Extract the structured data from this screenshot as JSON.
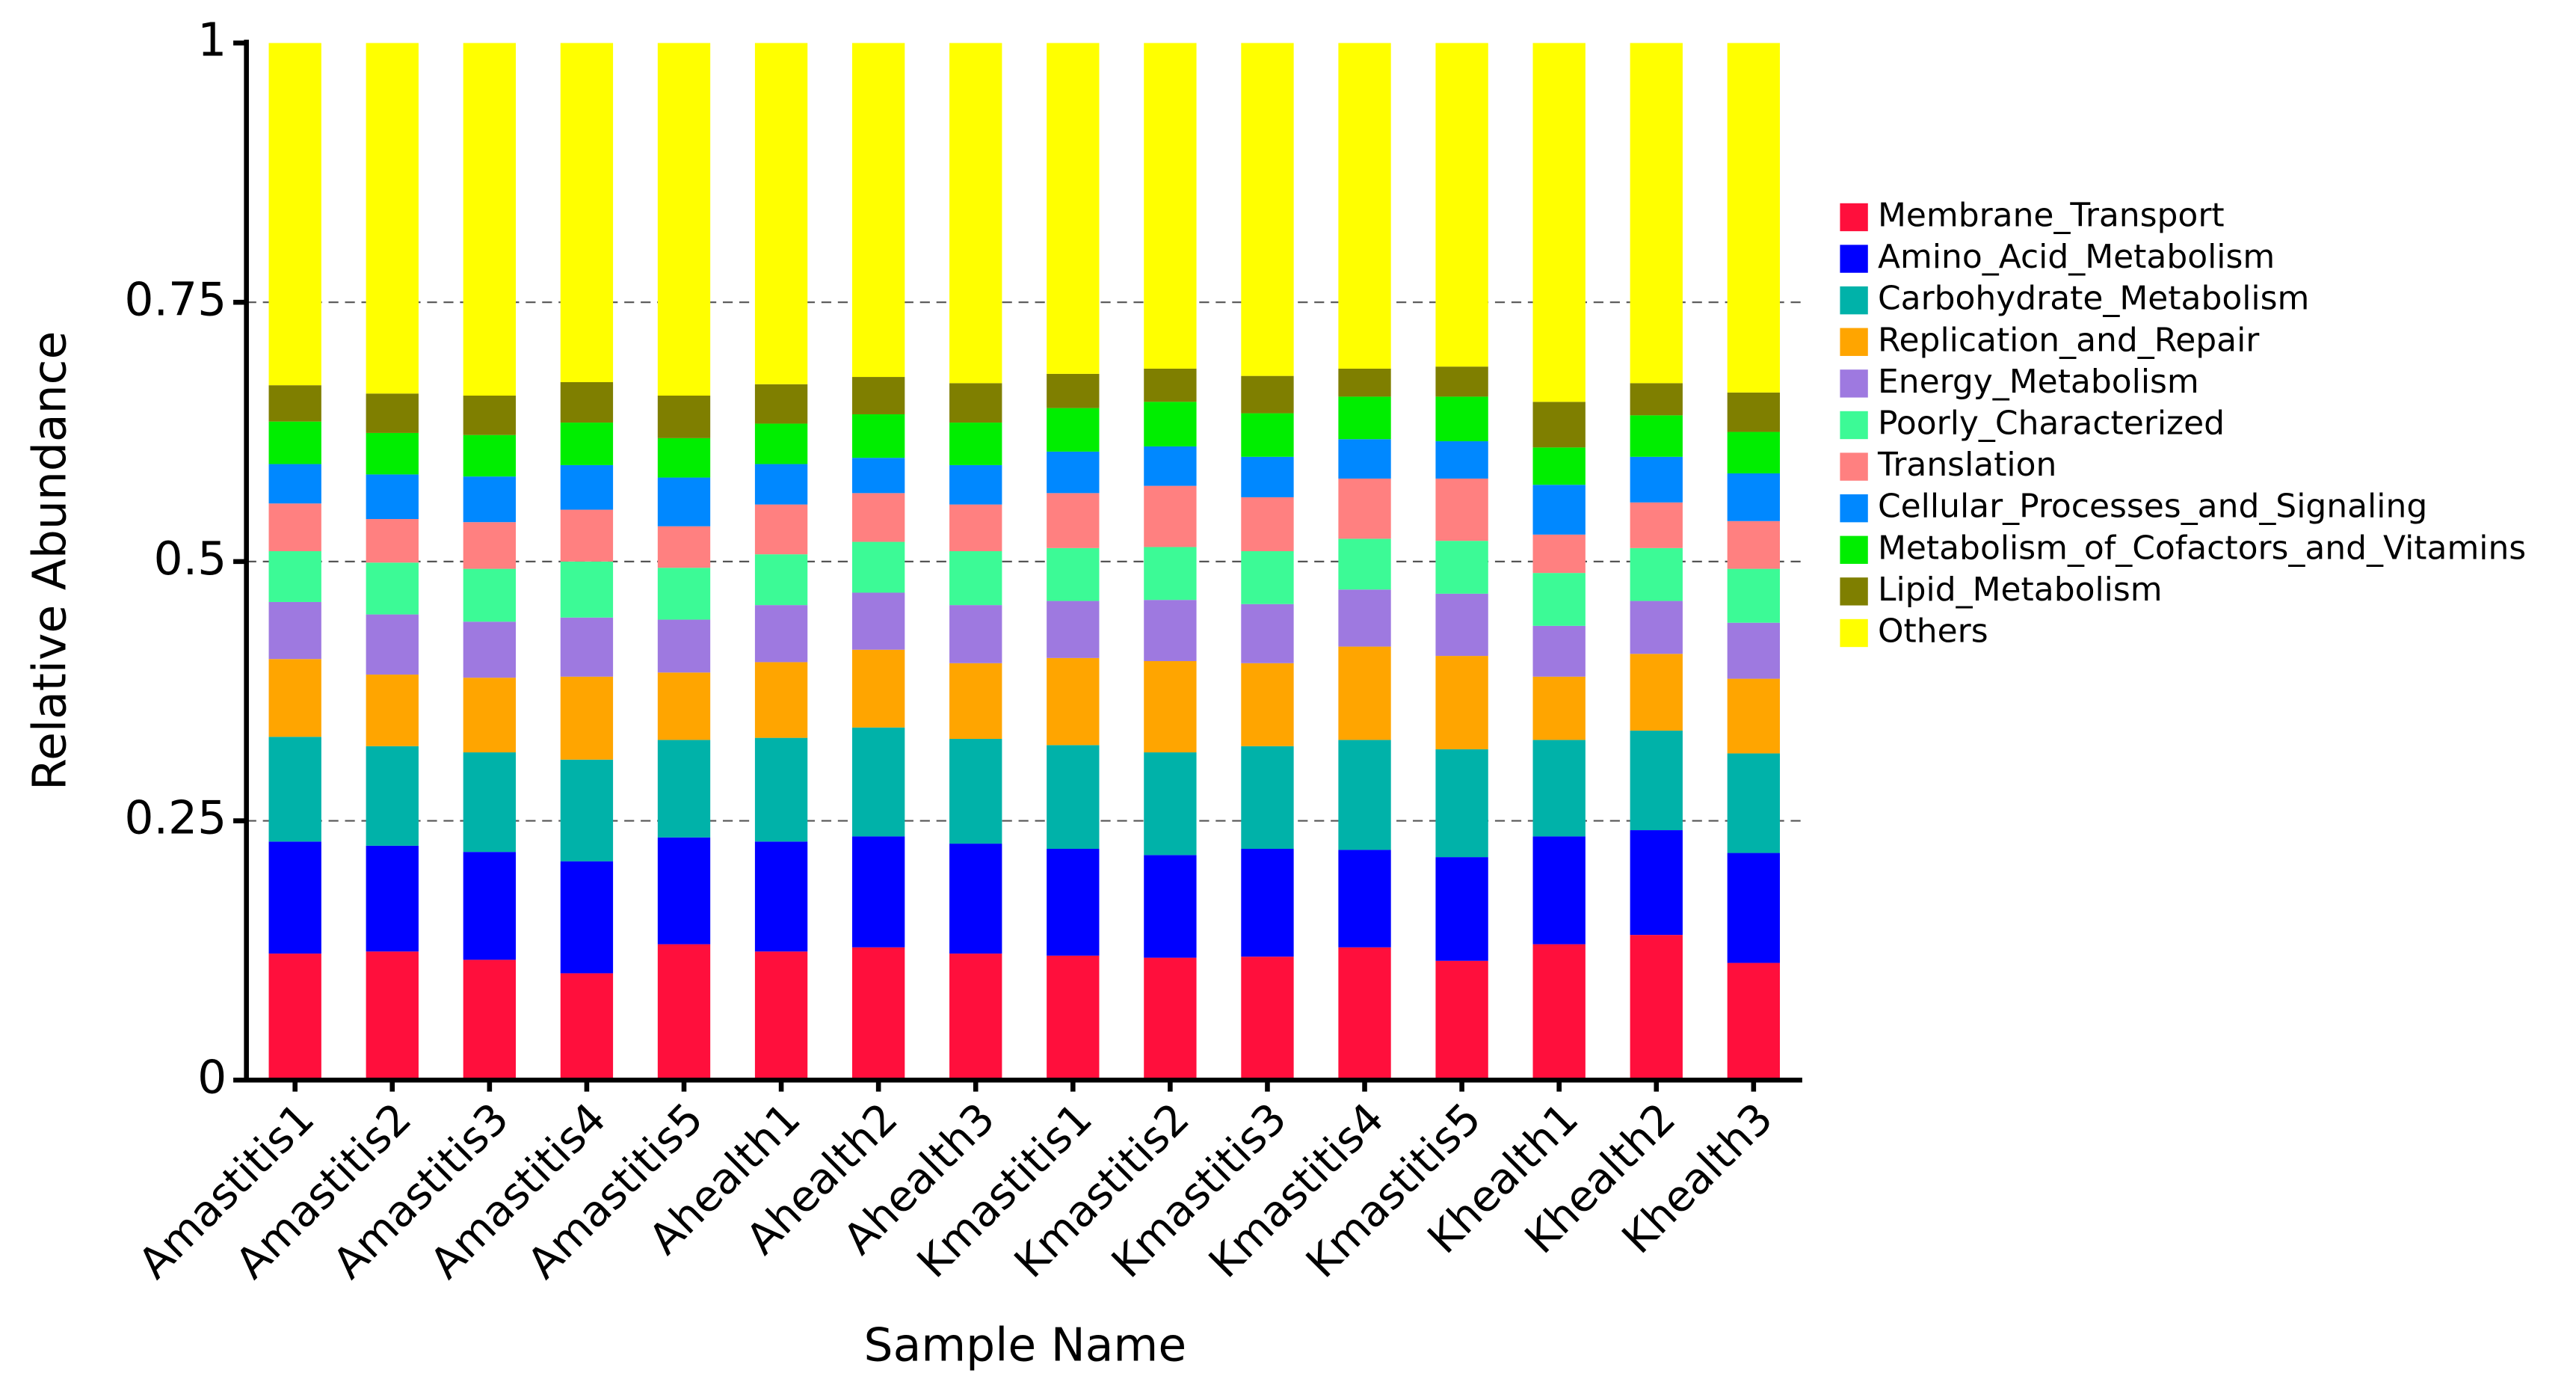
{
  "chart_data": {
    "type": "stacked_bar",
    "y_label": "Relative Abundance",
    "x_label": "Sample Name",
    "categories": [
      "Amastitis1",
      "Amastitis2",
      "Amastitis3",
      "Amastitis4",
      "Amastitis5",
      "Ahealth1",
      "Ahealth2",
      "Ahealth3",
      "Kmastitis1",
      "Kmastitis2",
      "Kmastitis3",
      "Kmastitis4",
      "Kmastitis5",
      "Khealth1",
      "Khealth2",
      "Khealth3"
    ],
    "ylim": [
      0,
      1
    ],
    "yticks": [
      0,
      0.25,
      0.5,
      0.75,
      1
    ],
    "grid": true,
    "legend": "right",
    "series": [
      {
        "name": "Membrane_Transport",
        "color": "#ff0f3c",
        "values": [
          0.122,
          0.124,
          0.116,
          0.103,
          0.131,
          0.124,
          0.128,
          0.122,
          0.12,
          0.118,
          0.119,
          0.128,
          0.115,
          0.131,
          0.14,
          0.113
        ]
      },
      {
        "name": "Amino_Acid_Metabolism",
        "color": "#0000ff",
        "values": [
          0.108,
          0.102,
          0.104,
          0.108,
          0.103,
          0.106,
          0.107,
          0.106,
          0.103,
          0.099,
          0.104,
          0.094,
          0.1,
          0.104,
          0.101,
          0.106
        ]
      },
      {
        "name": "Carbohydrate_Metabolism",
        "color": "#00b2a9",
        "values": [
          0.101,
          0.096,
          0.096,
          0.098,
          0.094,
          0.1,
          0.105,
          0.101,
          0.1,
          0.099,
          0.099,
          0.106,
          0.104,
          0.093,
          0.096,
          0.096
        ]
      },
      {
        "name": "Replication_and_Repair",
        "color": "#ffa500",
        "values": [
          0.075,
          0.069,
          0.072,
          0.08,
          0.065,
          0.073,
          0.075,
          0.073,
          0.084,
          0.088,
          0.08,
          0.09,
          0.09,
          0.061,
          0.074,
          0.072
        ]
      },
      {
        "name": "Energy_Metabolism",
        "color": "#9e79e0",
        "values": [
          0.055,
          0.058,
          0.054,
          0.057,
          0.051,
          0.055,
          0.055,
          0.056,
          0.055,
          0.059,
          0.057,
          0.055,
          0.06,
          0.049,
          0.051,
          0.054
        ]
      },
      {
        "name": "Poorly_Characterized",
        "color": "#3cfa96",
        "values": [
          0.049,
          0.05,
          0.051,
          0.054,
          0.05,
          0.049,
          0.049,
          0.052,
          0.051,
          0.051,
          0.051,
          0.049,
          0.051,
          0.051,
          0.051,
          0.052
        ]
      },
      {
        "name": "Translation",
        "color": "#ff8080",
        "values": [
          0.046,
          0.042,
          0.045,
          0.05,
          0.04,
          0.048,
          0.047,
          0.045,
          0.053,
          0.059,
          0.052,
          0.058,
          0.06,
          0.037,
          0.044,
          0.046
        ]
      },
      {
        "name": "Cellular_Processes_and_Signaling",
        "color": "#0088ff",
        "values": [
          0.038,
          0.043,
          0.044,
          0.043,
          0.047,
          0.039,
          0.034,
          0.038,
          0.04,
          0.038,
          0.039,
          0.038,
          0.036,
          0.048,
          0.044,
          0.046
        ]
      },
      {
        "name": "Metabolism_of_Cofactors_and_Vitamins",
        "color": "#00ee00",
        "values": [
          0.041,
          0.04,
          0.04,
          0.041,
          0.038,
          0.039,
          0.042,
          0.041,
          0.042,
          0.043,
          0.042,
          0.041,
          0.043,
          0.036,
          0.04,
          0.04
        ]
      },
      {
        "name": "Lipid_Metabolism",
        "color": "#7f7f00",
        "values": [
          0.035,
          0.038,
          0.038,
          0.039,
          0.041,
          0.038,
          0.036,
          0.038,
          0.033,
          0.032,
          0.036,
          0.027,
          0.029,
          0.044,
          0.031,
          0.038
        ]
      },
      {
        "name": "Others",
        "color": "#ffff00",
        "values": [
          0.33,
          0.338,
          0.34,
          0.327,
          0.34,
          0.329,
          0.322,
          0.328,
          0.319,
          0.314,
          0.321,
          0.314,
          0.312,
          0.346,
          0.328,
          0.337
        ]
      }
    ]
  }
}
